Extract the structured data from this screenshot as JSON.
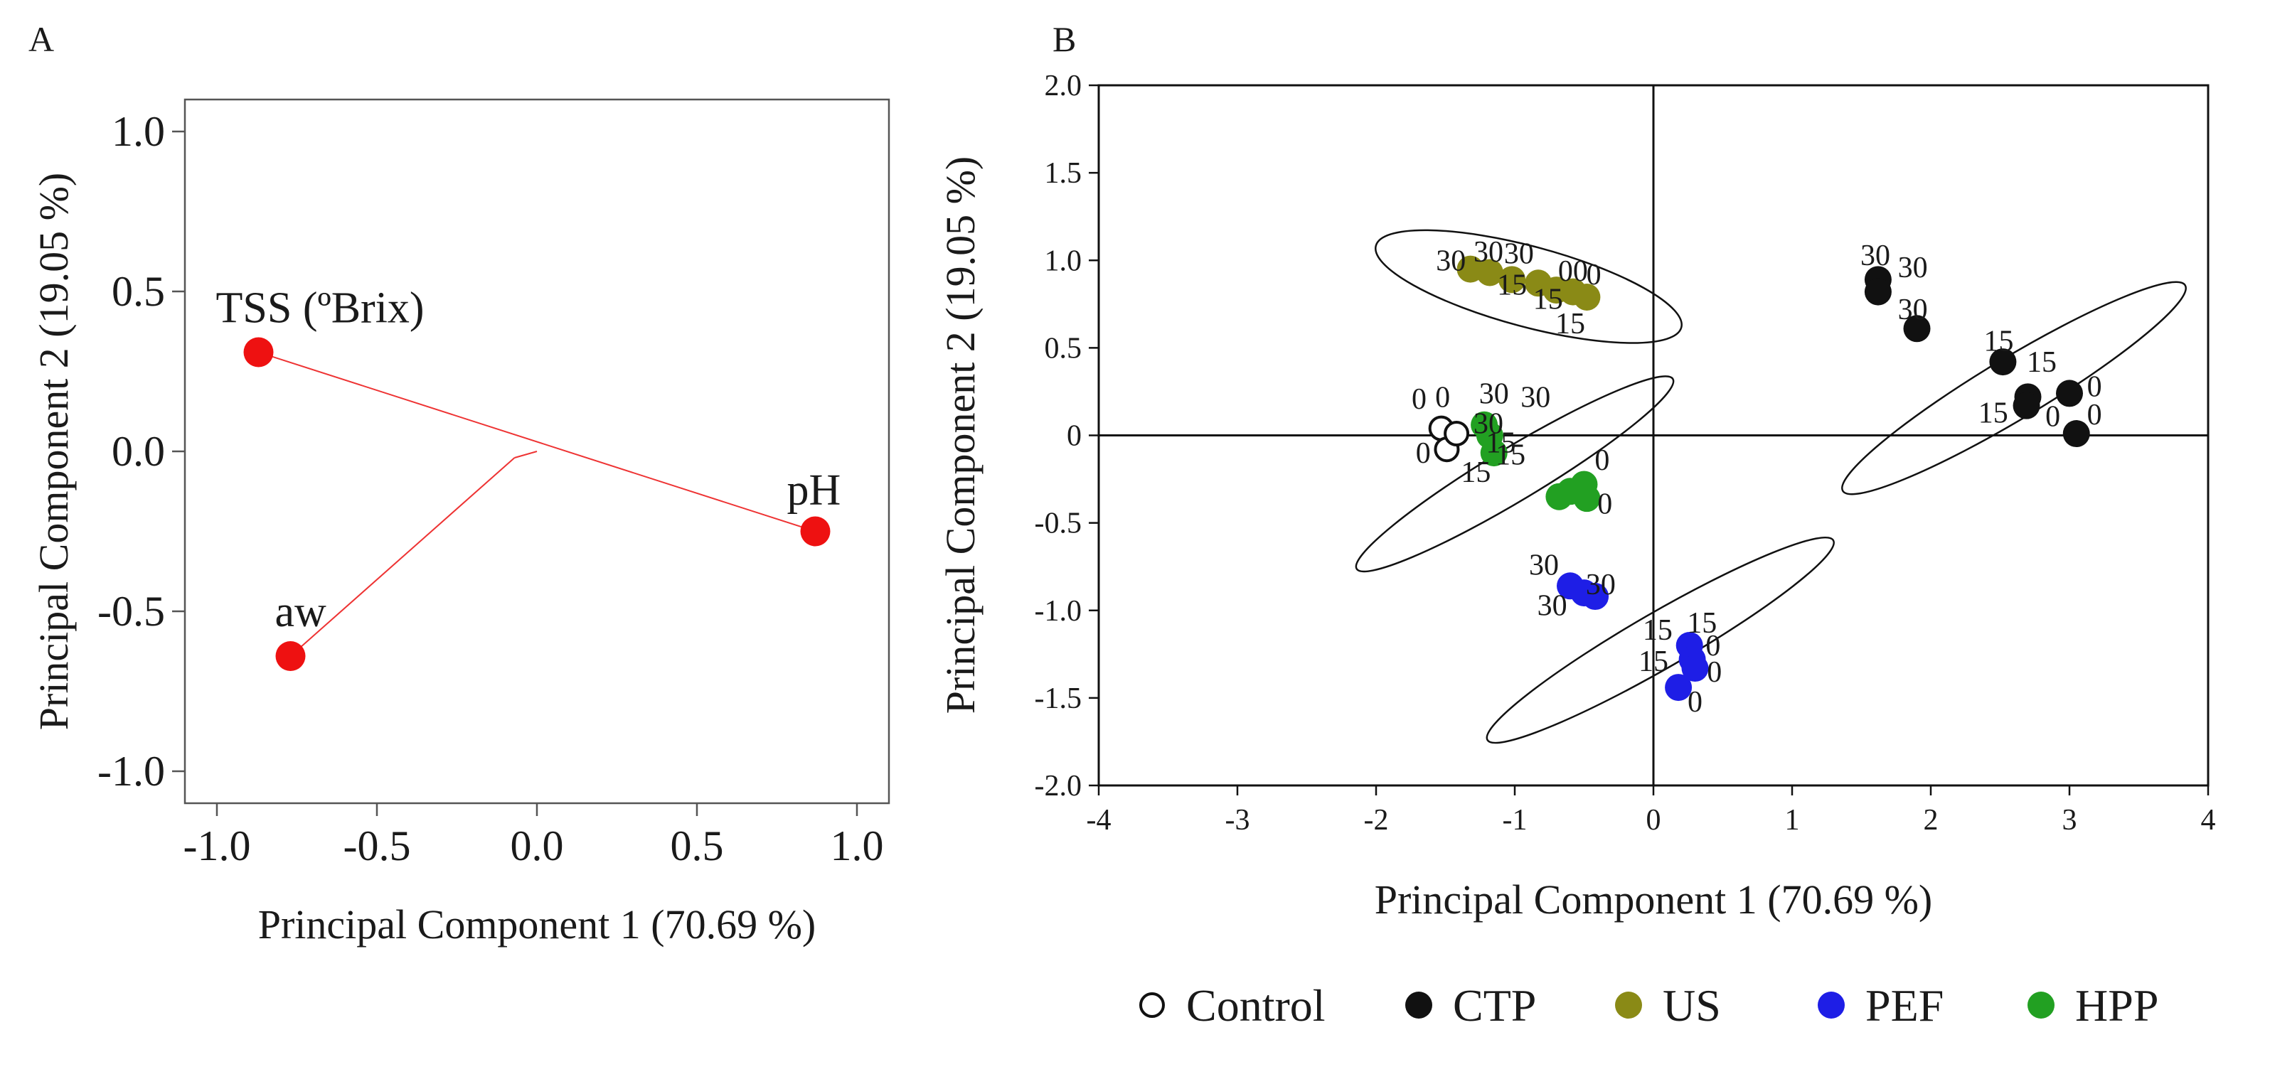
{
  "chart_data": [
    {
      "panel": "A",
      "type": "scatter",
      "subtype": "loading-plot",
      "xlabel": "Principal Component 1 (70.69 %)",
      "ylabel": "Principal Component 2 (19.05 %)",
      "xlim": [
        -1.1,
        1.1
      ],
      "ylim": [
        -1.1,
        1.1
      ],
      "xticks": [
        "-1.0",
        "-0.5",
        "0.0",
        "0.5",
        "1.0"
      ],
      "yticks": [
        "1.0",
        "0.5",
        "0.0",
        "-0.5",
        "-1.0"
      ],
      "tick_values": [
        -1.0,
        -0.5,
        0.0,
        0.5,
        1.0
      ],
      "point_color": "#ee1111",
      "line_color": "#ee3333",
      "variables": [
        {
          "name": "TSS (ºBrix)",
          "x": -0.87,
          "y": 0.31
        },
        {
          "name": "pH",
          "x": 0.87,
          "y": -0.25
        },
        {
          "name": "aw",
          "x": -0.77,
          "y": -0.64
        }
      ],
      "junction": {
        "x": 0.0,
        "y": 0.0
      },
      "branch_point": {
        "x": -0.07,
        "y": -0.02
      }
    },
    {
      "panel": "B",
      "type": "scatter",
      "subtype": "score-plot",
      "xlabel": "Principal Component 1 (70.69 %)",
      "ylabel": "Principal Component 2 (19.05 %)",
      "xlim": [
        -4,
        4
      ],
      "ylim": [
        -2.0,
        2.0
      ],
      "xticks": [
        "-4",
        "-3",
        "-2",
        "-1",
        "0",
        "1",
        "2",
        "3",
        "4"
      ],
      "xtick_values": [
        -4,
        -3,
        -2,
        -1,
        0,
        1,
        2,
        3,
        4
      ],
      "yticks": [
        "2.0",
        "1.5",
        "1.0",
        "0.5",
        "0",
        "-0.5",
        "-1.0",
        "-1.5",
        "-2.0"
      ],
      "ytick_values": [
        2.0,
        1.5,
        1.0,
        0.5,
        0,
        -0.5,
        -1.0,
        -1.5,
        -2.0
      ],
      "legend": [
        {
          "name": "Control",
          "color": "#111111",
          "hollow": true
        },
        {
          "name": "CTP",
          "color": "#111111",
          "hollow": false
        },
        {
          "name": "US",
          "color": "#8a8a16",
          "hollow": false
        },
        {
          "name": "PEF",
          "color": "#1e1ee6",
          "hollow": false
        },
        {
          "name": "HPP",
          "color": "#22a022",
          "hollow": false
        }
      ],
      "series": [
        {
          "name": "Control",
          "points": [
            [
              -1.53,
              0.04
            ],
            [
              -1.49,
              -0.08
            ],
            [
              -1.42,
              0.01
            ]
          ]
        },
        {
          "name": "CTP",
          "points": [
            [
              1.62,
              0.89
            ],
            [
              1.62,
              0.82
            ],
            [
              1.9,
              0.61
            ],
            [
              2.52,
              0.42
            ],
            [
              2.7,
              0.22
            ],
            [
              2.69,
              0.17
            ],
            [
              3.0,
              0.24
            ],
            [
              3.05,
              0.01
            ]
          ]
        },
        {
          "name": "US",
          "points": [
            [
              -1.32,
              0.95
            ],
            [
              -1.18,
              0.93
            ],
            [
              -1.02,
              0.89
            ],
            [
              -0.83,
              0.87
            ],
            [
              -0.7,
              0.83
            ],
            [
              -0.58,
              0.82
            ],
            [
              -0.48,
              0.79
            ]
          ]
        },
        {
          "name": "PEF",
          "points": [
            [
              -0.6,
              -0.86
            ],
            [
              -0.5,
              -0.9
            ],
            [
              -0.42,
              -0.92
            ],
            [
              0.26,
              -1.2
            ],
            [
              0.28,
              -1.28
            ],
            [
              0.3,
              -1.33
            ],
            [
              0.18,
              -1.44
            ]
          ]
        },
        {
          "name": "HPP",
          "points": [
            [
              -1.22,
              0.06
            ],
            [
              -1.18,
              0.0
            ],
            [
              -1.15,
              -0.1
            ],
            [
              -0.68,
              -0.35
            ],
            [
              -0.6,
              -0.32
            ],
            [
              -0.5,
              -0.28
            ],
            [
              -0.48,
              -0.36
            ]
          ]
        }
      ],
      "ellipses": [
        {
          "group": "US",
          "cx": -0.9,
          "cy": 0.85,
          "rx": 1.14,
          "ry": 0.29,
          "angle": 15
        },
        {
          "group": "Control+HPP",
          "cx": -1.0,
          "cy": -0.22,
          "rx": 1.33,
          "ry": 0.19,
          "angle": -31
        },
        {
          "group": "PEF",
          "cx": 0.05,
          "cy": -1.17,
          "rx": 1.44,
          "ry": 0.2,
          "angle": -30
        },
        {
          "group": "CTP",
          "cx": 2.6,
          "cy": 0.27,
          "rx": 1.44,
          "ry": 0.22,
          "angle": -31
        }
      ],
      "point_labels": [
        {
          "text": "0",
          "x": -1.69,
          "y": 0.21
        },
        {
          "text": "0",
          "x": -1.52,
          "y": 0.22
        },
        {
          "text": "30",
          "x": -1.15,
          "y": 0.24
        },
        {
          "text": "30",
          "x": -0.85,
          "y": 0.22
        },
        {
          "text": "30",
          "x": -1.19,
          "y": 0.07
        },
        {
          "text": "15",
          "x": -1.1,
          "y": -0.04
        },
        {
          "text": "15",
          "x": -1.03,
          "y": -0.11
        },
        {
          "text": "15",
          "x": -1.28,
          "y": -0.21
        },
        {
          "text": "0",
          "x": -1.66,
          "y": -0.1
        },
        {
          "text": "0",
          "x": -0.37,
          "y": -0.14
        },
        {
          "text": "0",
          "x": -0.35,
          "y": -0.39
        },
        {
          "text": "30",
          "x": -1.46,
          "y": 1.0
        },
        {
          "text": "30",
          "x": -1.19,
          "y": 1.05
        },
        {
          "text": "30",
          "x": -0.97,
          "y": 1.04
        },
        {
          "text": "00",
          "x": -0.58,
          "y": 0.94
        },
        {
          "text": "0",
          "x": -0.43,
          "y": 0.92
        },
        {
          "text": "15",
          "x": -1.02,
          "y": 0.86
        },
        {
          "text": "15",
          "x": -0.76,
          "y": 0.78
        },
        {
          "text": "15",
          "x": -0.6,
          "y": 0.64
        },
        {
          "text": "30",
          "x": 1.6,
          "y": 1.03
        },
        {
          "text": "30",
          "x": 1.87,
          "y": 0.96
        },
        {
          "text": "30",
          "x": 1.87,
          "y": 0.72
        },
        {
          "text": "15",
          "x": 2.49,
          "y": 0.54
        },
        {
          "text": "15",
          "x": 2.8,
          "y": 0.42
        },
        {
          "text": "15",
          "x": 2.45,
          "y": 0.13
        },
        {
          "text": "0",
          "x": 3.18,
          "y": 0.28
        },
        {
          "text": "0",
          "x": 2.88,
          "y": 0.11
        },
        {
          "text": "0",
          "x": 3.18,
          "y": 0.12
        },
        {
          "text": "30",
          "x": -0.79,
          "y": -0.74
        },
        {
          "text": "30",
          "x": -0.38,
          "y": -0.85
        },
        {
          "text": "30",
          "x": -0.73,
          "y": -0.97
        },
        {
          "text": "15",
          "x": 0.35,
          "y": -1.07
        },
        {
          "text": "15",
          "x": 0.03,
          "y": -1.11
        },
        {
          "text": "0",
          "x": 0.43,
          "y": -1.2
        },
        {
          "text": "15",
          "x": 0.0,
          "y": -1.29
        },
        {
          "text": "0",
          "x": 0.44,
          "y": -1.35
        },
        {
          "text": "0",
          "x": 0.3,
          "y": -1.52
        }
      ]
    }
  ],
  "panels": {
    "a_letter": "A",
    "b_letter": "B"
  }
}
